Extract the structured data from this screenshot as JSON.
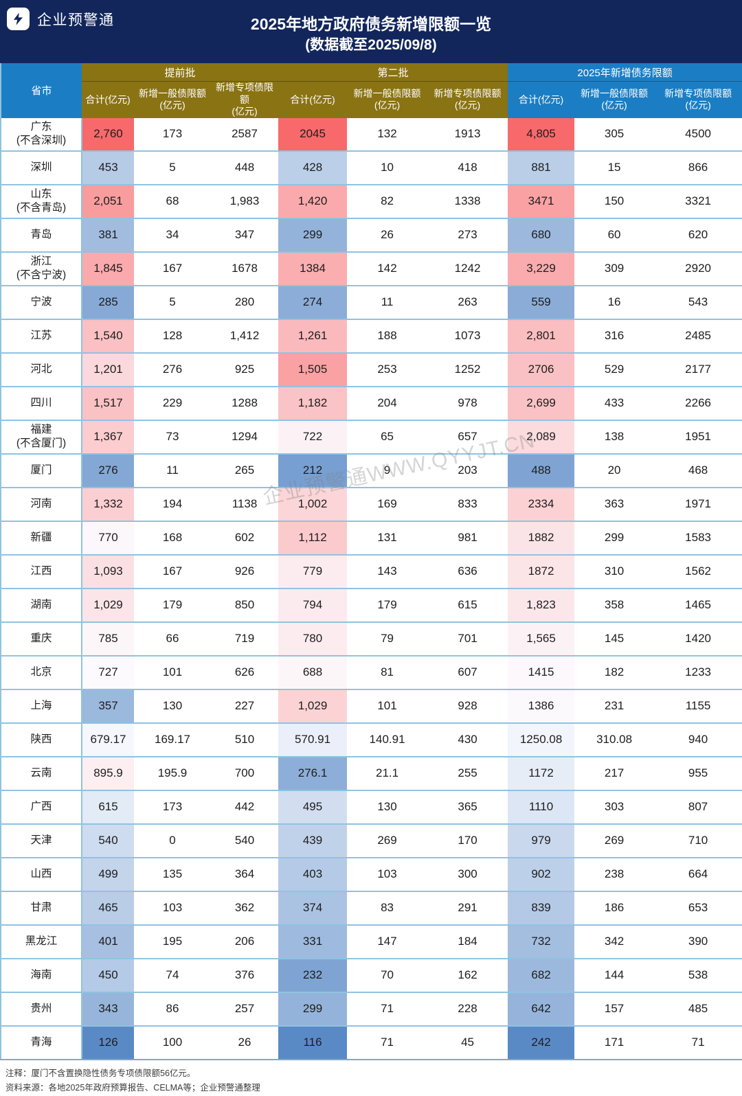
{
  "header": {
    "logo_text": "企业预警通",
    "title_line1": "2025年地方政府债务新增限额一览",
    "title_line2": "(数据截至2025/09/8)"
  },
  "table": {
    "province_header": "省市",
    "groups": [
      {
        "label": "提前批"
      },
      {
        "label": "第二批"
      },
      {
        "label": "2025年新增债务限额"
      }
    ],
    "sub_headers": [
      "合计(亿元)",
      "新增一般债限额\n(亿元)",
      "新增专项债限额\n(亿元)"
    ],
    "rows": [
      {
        "province": "广东\n(不含深圳)",
        "cells": [
          "2,760",
          "173",
          "2587",
          "2045",
          "132",
          "1913",
          "4,805",
          "305",
          "4500"
        ]
      },
      {
        "province": "深圳",
        "cells": [
          "453",
          "5",
          "448",
          "428",
          "10",
          "418",
          "881",
          "15",
          "866"
        ]
      },
      {
        "province": "山东\n(不含青岛)",
        "cells": [
          "2,051",
          "68",
          "1,983",
          "1,420",
          "82",
          "1338",
          "3471",
          "150",
          "3321"
        ]
      },
      {
        "province": "青岛",
        "cells": [
          "381",
          "34",
          "347",
          "299",
          "26",
          "273",
          "680",
          "60",
          "620"
        ]
      },
      {
        "province": "浙江\n(不含宁波)",
        "cells": [
          "1,845",
          "167",
          "1678",
          "1384",
          "142",
          "1242",
          "3,229",
          "309",
          "2920"
        ]
      },
      {
        "province": "宁波",
        "cells": [
          "285",
          "5",
          "280",
          "274",
          "11",
          "263",
          "559",
          "16",
          "543"
        ]
      },
      {
        "province": "江苏",
        "cells": [
          "1,540",
          "128",
          "1,412",
          "1,261",
          "188",
          "1073",
          "2,801",
          "316",
          "2485"
        ]
      },
      {
        "province": "河北",
        "cells": [
          "1,201",
          "276",
          "925",
          "1,505",
          "253",
          "1252",
          "2706",
          "529",
          "2177"
        ]
      },
      {
        "province": "四川",
        "cells": [
          "1,517",
          "229",
          "1288",
          "1,182",
          "204",
          "978",
          "2,699",
          "433",
          "2266"
        ]
      },
      {
        "province": "福建\n(不含厦门)",
        "cells": [
          "1,367",
          "73",
          "1294",
          "722",
          "65",
          "657",
          "2,089",
          "138",
          "1951"
        ]
      },
      {
        "province": "厦门",
        "cells": [
          "276",
          "11",
          "265",
          "212",
          "9",
          "203",
          "488",
          "20",
          "468"
        ]
      },
      {
        "province": "河南",
        "cells": [
          "1,332",
          "194",
          "1138",
          "1,002",
          "169",
          "833",
          "2334",
          "363",
          "1971"
        ]
      },
      {
        "province": "新疆",
        "cells": [
          "770",
          "168",
          "602",
          "1,112",
          "131",
          "981",
          "1882",
          "299",
          "1583"
        ]
      },
      {
        "province": "江西",
        "cells": [
          "1,093",
          "167",
          "926",
          "779",
          "143",
          "636",
          "1872",
          "310",
          "1562"
        ]
      },
      {
        "province": "湖南",
        "cells": [
          "1,029",
          "179",
          "850",
          "794",
          "179",
          "615",
          "1,823",
          "358",
          "1465"
        ]
      },
      {
        "province": "重庆",
        "cells": [
          "785",
          "66",
          "719",
          "780",
          "79",
          "701",
          "1,565",
          "145",
          "1420"
        ]
      },
      {
        "province": "北京",
        "cells": [
          "727",
          "101",
          "626",
          "688",
          "81",
          "607",
          "1415",
          "182",
          "1233"
        ]
      },
      {
        "province": "上海",
        "cells": [
          "357",
          "130",
          "227",
          "1,029",
          "101",
          "928",
          "1386",
          "231",
          "1155"
        ]
      },
      {
        "province": "陕西",
        "cells": [
          "679.17",
          "169.17",
          "510",
          "570.91",
          "140.91",
          "430",
          "1250.08",
          "310.08",
          "940"
        ]
      },
      {
        "province": "云南",
        "cells": [
          "895.9",
          "195.9",
          "700",
          "276.1",
          "21.1",
          "255",
          "1172",
          "217",
          "955"
        ]
      },
      {
        "province": "广西",
        "cells": [
          "615",
          "173",
          "442",
          "495",
          "130",
          "365",
          "1110",
          "303",
          "807"
        ]
      },
      {
        "province": "天津",
        "cells": [
          "540",
          "0",
          "540",
          "439",
          "269",
          "170",
          "979",
          "269",
          "710"
        ]
      },
      {
        "province": "山西",
        "cells": [
          "499",
          "135",
          "364",
          "403",
          "103",
          "300",
          "902",
          "238",
          "664"
        ]
      },
      {
        "province": "甘肃",
        "cells": [
          "465",
          "103",
          "362",
          "374",
          "83",
          "291",
          "839",
          "186",
          "653"
        ]
      },
      {
        "province": "黑龙江",
        "cells": [
          "401",
          "195",
          "206",
          "331",
          "147",
          "184",
          "732",
          "342",
          "390"
        ]
      },
      {
        "province": "海南",
        "cells": [
          "450",
          "74",
          "376",
          "232",
          "70",
          "162",
          "682",
          "144",
          "538"
        ]
      },
      {
        "province": "贵州",
        "cells": [
          "343",
          "86",
          "257",
          "299",
          "71",
          "228",
          "642",
          "157",
          "485"
        ]
      },
      {
        "province": "青海",
        "cells": [
          "126",
          "100",
          "26",
          "116",
          "71",
          "45",
          "242",
          "171",
          "71"
        ]
      }
    ]
  },
  "watermark": "企业预警通WWW.QYYJT.CN",
  "footer": {
    "note": "注释：厦门不含置换隐性债务专项债限额56亿元。",
    "source": "资料来源：各地2025年政府预算报告、CELMA等；企业预警通整理"
  },
  "colors": {
    "topbar": "#12265C",
    "header_blue": "#1B7EC4",
    "header_gold": "#8A7313",
    "row_line": "#8FC3E1",
    "heat_min": "#5A8AC6",
    "heat_mid": "#FCFCFF",
    "heat_max": "#F8696B"
  },
  "chart_data": {
    "type": "table",
    "title": "2025年地方政府债务新增限额一览",
    "subtitle": "(数据截至2025/09/8)",
    "heatmap_columns": [
      "提前批-合计(亿元)",
      "第二批-合计(亿元)",
      "2025年新增债务限额-合计(亿元)"
    ],
    "columns": [
      "省市",
      "提前批-合计(亿元)",
      "提前批-新增一般债限额(亿元)",
      "提前批-新增专项债限额(亿元)",
      "第二批-合计(亿元)",
      "第二批-新增一般债限额(亿元)",
      "第二批-新增专项债限额(亿元)",
      "2025年新增债务限额-合计(亿元)",
      "2025年新增债务限额-新增一般债限额(亿元)",
      "2025年新增债务限额-新增专项债限额(亿元)"
    ],
    "rows": [
      {
        "province": "广东(不含深圳)",
        "values": [
          2760,
          173,
          2587,
          2045,
          132,
          1913,
          4805,
          305,
          4500
        ]
      },
      {
        "province": "深圳",
        "values": [
          453,
          5,
          448,
          428,
          10,
          418,
          881,
          15,
          866
        ]
      },
      {
        "province": "山东(不含青岛)",
        "values": [
          2051,
          68,
          1983,
          1420,
          82,
          1338,
          3471,
          150,
          3321
        ]
      },
      {
        "province": "青岛",
        "values": [
          381,
          34,
          347,
          299,
          26,
          273,
          680,
          60,
          620
        ]
      },
      {
        "province": "浙江(不含宁波)",
        "values": [
          1845,
          167,
          1678,
          1384,
          142,
          1242,
          3229,
          309,
          2920
        ]
      },
      {
        "province": "宁波",
        "values": [
          285,
          5,
          280,
          274,
          11,
          263,
          559,
          16,
          543
        ]
      },
      {
        "province": "江苏",
        "values": [
          1540,
          128,
          1412,
          1261,
          188,
          1073,
          2801,
          316,
          2485
        ]
      },
      {
        "province": "河北",
        "values": [
          1201,
          276,
          925,
          1505,
          253,
          1252,
          2706,
          529,
          2177
        ]
      },
      {
        "province": "四川",
        "values": [
          1517,
          229,
          1288,
          1182,
          204,
          978,
          2699,
          433,
          2266
        ]
      },
      {
        "province": "福建(不含厦门)",
        "values": [
          1367,
          73,
          1294,
          722,
          65,
          657,
          2089,
          138,
          1951
        ]
      },
      {
        "province": "厦门",
        "values": [
          276,
          11,
          265,
          212,
          9,
          203,
          488,
          20,
          468
        ]
      },
      {
        "province": "河南",
        "values": [
          1332,
          194,
          1138,
          1002,
          169,
          833,
          2334,
          363,
          1971
        ]
      },
      {
        "province": "新疆",
        "values": [
          770,
          168,
          602,
          1112,
          131,
          981,
          1882,
          299,
          1583
        ]
      },
      {
        "province": "江西",
        "values": [
          1093,
          167,
          926,
          779,
          143,
          636,
          1872,
          310,
          1562
        ]
      },
      {
        "province": "湖南",
        "values": [
          1029,
          179,
          850,
          794,
          179,
          615,
          1823,
          358,
          1465
        ]
      },
      {
        "province": "重庆",
        "values": [
          785,
          66,
          719,
          780,
          79,
          701,
          1565,
          145,
          1420
        ]
      },
      {
        "province": "北京",
        "values": [
          727,
          101,
          626,
          688,
          81,
          607,
          1415,
          182,
          1233
        ]
      },
      {
        "province": "上海",
        "values": [
          357,
          130,
          227,
          1029,
          101,
          928,
          1386,
          231,
          1155
        ]
      },
      {
        "province": "陕西",
        "values": [
          679.17,
          169.17,
          510,
          570.91,
          140.91,
          430,
          1250.08,
          310.08,
          940
        ]
      },
      {
        "province": "云南",
        "values": [
          895.9,
          195.9,
          700,
          276.1,
          21.1,
          255,
          1172,
          217,
          955
        ]
      },
      {
        "province": "广西",
        "values": [
          615,
          173,
          442,
          495,
          130,
          365,
          1110,
          303,
          807
        ]
      },
      {
        "province": "天津",
        "values": [
          540,
          0,
          540,
          439,
          269,
          170,
          979,
          269,
          710
        ]
      },
      {
        "province": "山西",
        "values": [
          499,
          135,
          364,
          403,
          103,
          300,
          902,
          238,
          664
        ]
      },
      {
        "province": "甘肃",
        "values": [
          465,
          103,
          362,
          374,
          83,
          291,
          839,
          186,
          653
        ]
      },
      {
        "province": "黑龙江",
        "values": [
          401,
          195,
          206,
          331,
          147,
          184,
          732,
          342,
          390
        ]
      },
      {
        "province": "海南",
        "values": [
          450,
          74,
          376,
          232,
          70,
          162,
          682,
          144,
          538
        ]
      },
      {
        "province": "贵州",
        "values": [
          343,
          86,
          257,
          299,
          71,
          228,
          642,
          157,
          485
        ]
      },
      {
        "province": "青海",
        "values": [
          126,
          100,
          26,
          116,
          71,
          45,
          242,
          171,
          71
        ]
      }
    ]
  }
}
